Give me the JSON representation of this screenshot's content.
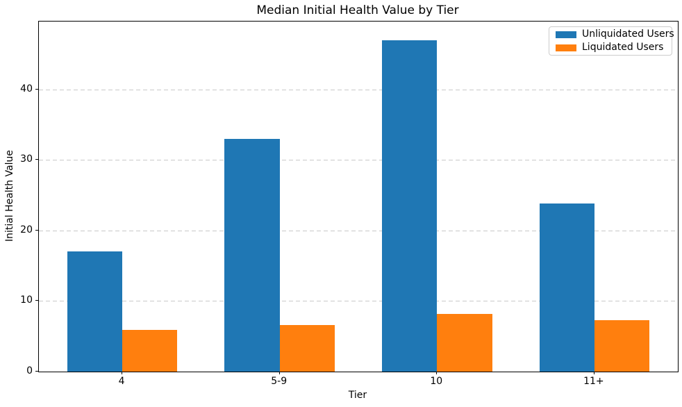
{
  "chart_data": {
    "type": "bar",
    "title": "Median Initial Health Value by Tier",
    "xlabel": "Tier",
    "ylabel": "Initial Health Value",
    "categories": [
      "4",
      "5-9",
      "10",
      "11+"
    ],
    "series": [
      {
        "name": "Unliquidated Users",
        "color": "#1f77b4",
        "values": [
          17,
          33,
          47,
          23.8
        ]
      },
      {
        "name": "Liquidated Users",
        "color": "#ff7f0e",
        "values": [
          5.9,
          6.6,
          8.2,
          7.3
        ]
      }
    ],
    "y_ticks": [
      0,
      10,
      20,
      30,
      40
    ],
    "ylim": [
      0,
      49.65
    ],
    "bar_width": 0.35,
    "grid": "horizontal-dashed",
    "grid_color": "#c9c9c9",
    "legend_position": "upper right",
    "legend_entries": [
      "Unliquidated Users",
      "Liquidated Users"
    ]
  }
}
